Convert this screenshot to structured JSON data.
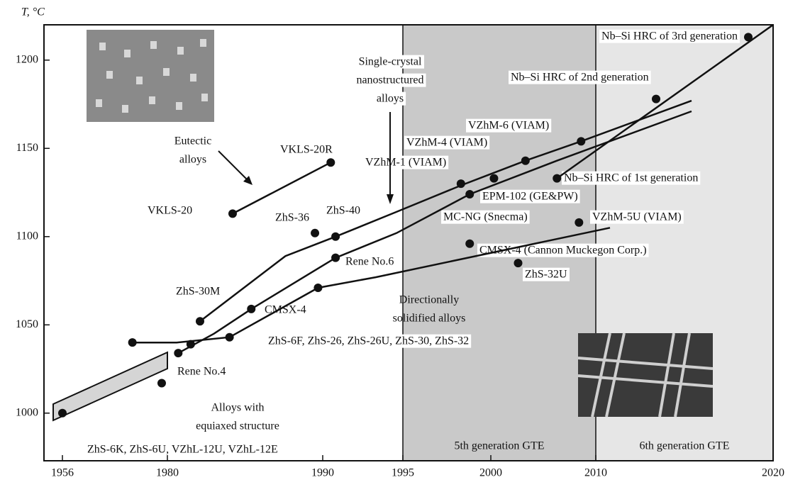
{
  "chart_data": {
    "type": "line",
    "y_label": "T, °C",
    "xlim": [
      1952,
      2020
    ],
    "ylim": [
      973,
      1220
    ],
    "xticks": [
      1956,
      1980,
      1990,
      1995,
      2000,
      2010,
      2020
    ],
    "yticks": [
      1000,
      1050,
      1100,
      1150,
      1200
    ],
    "spans": [
      {
        "from": 1995,
        "to": 2010,
        "label": "5th generation GTE",
        "color": "#c9c9c9"
      },
      {
        "from": 2010,
        "to": 2020,
        "label": "6th generation GTE",
        "color": "#e6e6e6"
      }
    ],
    "series": [
      {
        "color": "#111111",
        "x": [
          1984.2,
          1990.5
        ],
        "values": [
          1113,
          1142
        ]
      },
      {
        "color": "#111111",
        "x": [
          1982.1,
          1987.6,
          1990.8,
          1994.6,
          1998.3,
          2003.3,
          2008.6,
          2015.4
        ],
        "values": [
          1052,
          1089,
          1100,
          1114,
          1129,
          1143,
          1154,
          1177
        ]
      },
      {
        "color": "#111111",
        "x": [
          1980.7,
          1983,
          1985.4,
          1990.8,
          1994.6,
          1998.8,
          2006.3,
          2015.4
        ],
        "values": [
          1034,
          1045,
          1059,
          1088,
          1102,
          1124,
          1143,
          1171
        ]
      },
      {
        "color": "#111111",
        "x": [
          1972,
          1980.6,
          1984,
          1989.7,
          1993.3,
          2010.8
        ],
        "values": [
          1040,
          1040,
          1043,
          1071,
          1077,
          1105
        ]
      },
      {
        "color": "#111111",
        "x": [
          2006.3,
          2020
        ],
        "values": [
          1133,
          1220
        ]
      }
    ],
    "points": {
      "color": "#111111",
      "x": [
        1956,
        1978.7,
        1972,
        1980.7,
        1981.5,
        1982.1,
        1984,
        1984.2,
        1985.4,
        1989.5,
        1990.5,
        1989.7,
        1990.8,
        1990.8,
        1998.3,
        1998.8,
        1998.8,
        2000.3,
        2003.3,
        2002.6,
        2006.3,
        2008.6,
        2008.4,
        2013.4,
        2018.6
      ],
      "values": [
        1000,
        1017,
        1040,
        1034,
        1039,
        1052,
        1043,
        1113,
        1059,
        1102,
        1142,
        1071,
        1100,
        1088,
        1130,
        1124,
        1096,
        1133,
        1143,
        1085,
        1133,
        1154,
        1108,
        1178,
        1213
      ]
    },
    "annotations": [
      "Nb–Si HRC of 3rd generation",
      "Nb–Si HRC of 2nd generation",
      "VZhM-6 (VIAM)",
      "VZhM-4 (VIAM)",
      "VZhM-1 (VIAM)",
      "Nb–Si HRC of 1st generation",
      "EPM-102 (GE&PW)",
      "MC-NG (Snecma)",
      "VZhM-5U (VIAM)",
      "CMSX-4 (Cannon Muckegon Corp.)",
      "ZhS-32U",
      "VKLS-20R",
      "VKLS-20",
      "ZhS-36",
      "ZhS-40",
      "Rene No.6",
      "ZhS-30M",
      "CMSX-4",
      "ZhS-6F, ZhS-26, ZhS-26U, ZhS-30, ZhS-32",
      "Rene No.4",
      "ZhS-6K, ZhS-6U, VZhL-12U, VZhL-12E",
      [
        "Alloys with",
        "equiaxed structure"
      ],
      [
        "Eutectic",
        "alloys"
      ],
      [
        "Single-crystal",
        "nanostructured",
        "alloys"
      ],
      [
        "Directionally",
        "solidified alloys"
      ]
    ]
  }
}
